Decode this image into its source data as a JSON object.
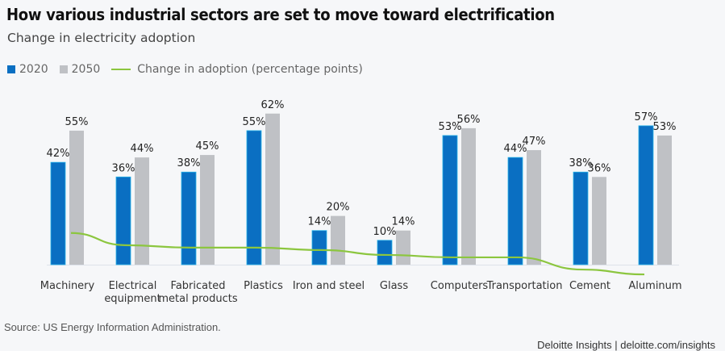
{
  "header": {
    "title": "How various industrial sectors are set to move toward electrification",
    "subtitle": "Change in electricity adoption"
  },
  "legend": {
    "items": [
      {
        "label": "2020",
        "color": "#0a6fc2",
        "kind": "bar"
      },
      {
        "label": "2050",
        "color": "#bfc1c5",
        "kind": "bar"
      },
      {
        "label": "Change in adoption (percentage points)",
        "color": "#8cc63f",
        "kind": "line"
      }
    ]
  },
  "footer": {
    "source": "Source: US Energy Information Administration.",
    "credit": "Deloitte Insights | deloitte.com/insights"
  },
  "chart_data": {
    "type": "bar",
    "title": "How various industrial sectors are set to move toward electrification",
    "subtitle": "Change in electricity adoption",
    "xlabel": "",
    "ylabel": "",
    "ylim": [
      0,
      65
    ],
    "grid": false,
    "legend_position": "top-left",
    "categories": [
      [
        "Machinery"
      ],
      [
        "Electrical",
        "equipment"
      ],
      [
        "Fabricated",
        "metal products"
      ],
      [
        "Plastics"
      ],
      [
        "Iron and steel"
      ],
      [
        "Glass"
      ],
      [
        "Computers"
      ],
      [
        "Transportation"
      ],
      [
        "Cement"
      ],
      [
        "Aluminum"
      ]
    ],
    "series": [
      {
        "name": "2020",
        "type": "bar",
        "color": "#0a6fc2",
        "values": [
          42,
          36,
          38,
          55,
          14,
          10,
          53,
          44,
          38,
          57
        ],
        "labels": [
          "42%",
          "36%",
          "38%",
          "55%",
          "14%",
          "10%",
          "53%",
          "44%",
          "38%",
          "57%"
        ]
      },
      {
        "name": "2050",
        "type": "bar",
        "color": "#bfc1c5",
        "values": [
          55,
          44,
          45,
          62,
          20,
          14,
          56,
          47,
          36,
          53
        ],
        "labels": [
          "55%",
          "44%",
          "45%",
          "62%",
          "20%",
          "14%",
          "56%",
          "47%",
          "36%",
          "53%"
        ]
      },
      {
        "name": "Change in adoption (percentage points)",
        "type": "line",
        "color": "#8cc63f",
        "values": [
          13,
          8,
          7,
          7,
          6,
          4,
          3,
          3,
          -2,
          -4
        ]
      }
    ]
  }
}
